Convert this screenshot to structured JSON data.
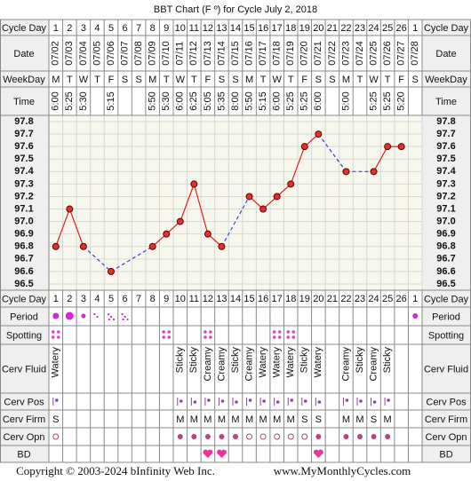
{
  "title": "BBT Chart (F º) for Cycle July 2, 2018",
  "row_labels": {
    "cycle_day": "Cycle Day",
    "date": "Date",
    "weekday": "WeekDay",
    "time": "Time",
    "period": "Period",
    "spotting": "Spotting",
    "cerv_fluid": "Cerv Fluid",
    "cerv_pos": "Cerv Pos",
    "cerv_firm": "Cerv Firm",
    "cerv_opn": "Cerv Opn",
    "bd": "BD"
  },
  "cycle_days": [
    1,
    2,
    3,
    4,
    5,
    6,
    7,
    8,
    9,
    10,
    11,
    12,
    13,
    14,
    15,
    16,
    17,
    18,
    19,
    20,
    21,
    22,
    23,
    24,
    25,
    26,
    1
  ],
  "dates": [
    "07/02",
    "07/03",
    "07/04",
    "07/05",
    "07/06",
    "07/07",
    "07/08",
    "07/09",
    "07/10",
    "07/11",
    "07/12",
    "07/13",
    "07/14",
    "07/15",
    "07/16",
    "07/17",
    "07/18",
    "07/19",
    "07/20",
    "07/21",
    "07/22",
    "07/23",
    "07/24",
    "07/25",
    "07/26",
    "07/27",
    "07/28"
  ],
  "weekdays": [
    "M",
    "T",
    "W",
    "T",
    "F",
    "S",
    "S",
    "M",
    "T",
    "W",
    "T",
    "F",
    "S",
    "S",
    "M",
    "T",
    "W",
    "T",
    "F",
    "S",
    "S",
    "M",
    "T",
    "W",
    "T",
    "F",
    "S"
  ],
  "times": [
    "6:00",
    "5:25",
    "5:30",
    null,
    "5:15",
    null,
    null,
    "5:50",
    "5:30",
    "6:00",
    "6:25",
    "5:05",
    "5:35",
    "8:00",
    "5:50",
    "5:15",
    "6:00",
    "5:25",
    "5:25",
    "6:00",
    null,
    "5:00",
    null,
    "5:25",
    "5:25",
    "5:20",
    null
  ],
  "chart_data": {
    "type": "line",
    "values": [
      96.8,
      97.1,
      96.8,
      null,
      96.6,
      null,
      null,
      96.8,
      96.9,
      97.0,
      97.3,
      96.9,
      96.8,
      null,
      97.2,
      97.1,
      97.2,
      97.3,
      97.6,
      97.7,
      null,
      97.4,
      null,
      97.4,
      97.6,
      97.6,
      null
    ],
    "ylim": [
      96.45,
      97.85
    ],
    "yticks": [
      97.8,
      97.7,
      97.6,
      97.5,
      97.4,
      97.3,
      97.2,
      97.1,
      {
        "value": 97,
        "label": "97.0"
      },
      96.9,
      96.8,
      96.7,
      96.6,
      96.5
    ],
    "color": "#e02020",
    "gap_color": "#3344dd",
    "grid": true
  },
  "cerv_fluid": [
    "Watery",
    null,
    null,
    null,
    null,
    null,
    null,
    null,
    null,
    "Sticky",
    "Sticky",
    "Creamy",
    "Creamy",
    "Sticky",
    "Creamy",
    "Watery",
    "Watery",
    "Watery",
    "Sticky",
    "Watery",
    null,
    "Creamy",
    "Sticky",
    "Creamy",
    "Sticky",
    null,
    null
  ],
  "cerv_firm": [
    "S",
    null,
    null,
    null,
    null,
    null,
    null,
    null,
    null,
    "M",
    "M",
    "M",
    "M",
    "M",
    "M",
    "M",
    "M",
    "M",
    "S",
    "S",
    null,
    "M",
    "M",
    "S",
    "M",
    null,
    null
  ],
  "footer": {
    "copyright": "Copyright © 2003-2024 bInfinity Web Inc.",
    "site": "www.MyMonthlyCycles.com"
  }
}
